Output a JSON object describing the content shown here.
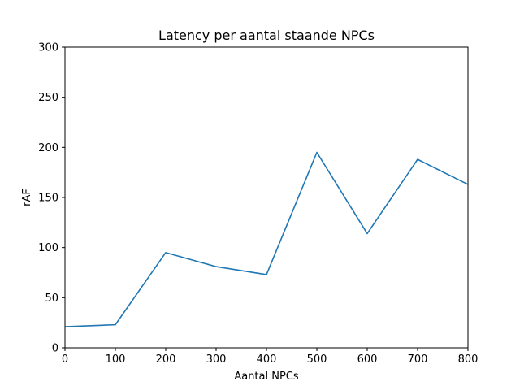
{
  "chart_data": {
    "type": "line",
    "title": "Latency per aantal staande NPCs",
    "xlabel": "Aantal NPCs",
    "ylabel": "rAF",
    "xlim": [
      0,
      800
    ],
    "ylim": [
      0,
      300
    ],
    "x_ticks": [
      0,
      100,
      200,
      300,
      400,
      500,
      600,
      700,
      800
    ],
    "y_ticks": [
      0,
      50,
      100,
      150,
      200,
      250,
      300
    ],
    "grid": false,
    "series": [
      {
        "color": "#1f77b4",
        "x": [
          0,
          100,
          200,
          300,
          400,
          500,
          600,
          700,
          800
        ],
        "y": [
          21,
          23,
          95,
          81,
          73,
          195,
          114,
          188,
          163
        ]
      }
    ]
  }
}
